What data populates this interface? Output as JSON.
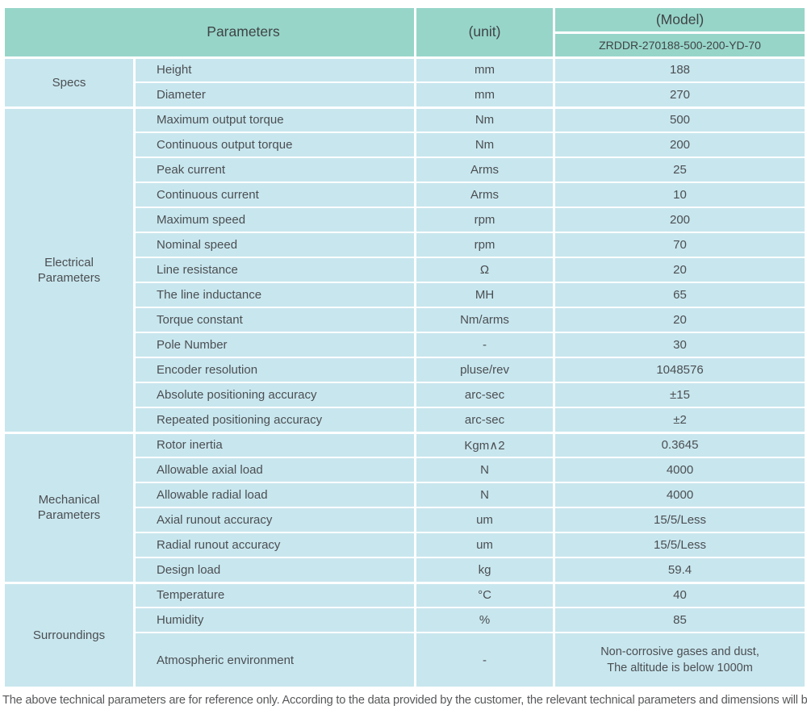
{
  "colors": {
    "header_bg": "#97d5c9",
    "row_bg": "#c8e6ee",
    "divider": "#ffffff",
    "text": "#4b4f52"
  },
  "header": {
    "parameters": "Parameters",
    "unit": "(unit)",
    "model": "(Model)",
    "model_value": "ZRDDR-270188-500-200-YD-70"
  },
  "sections": [
    {
      "group": "Specs",
      "rows": [
        [
          "Height",
          "mm",
          "188"
        ],
        [
          "Diameter",
          "mm",
          "270"
        ]
      ]
    },
    {
      "group": "Electrical\nParameters",
      "rows": [
        [
          "Maximum output torque",
          "Nm",
          "500"
        ],
        [
          "Continuous output torque",
          "Nm",
          "200"
        ],
        [
          "Peak current",
          "Arms",
          "25"
        ],
        [
          "Continuous current",
          "Arms",
          "10"
        ],
        [
          "Maximum speed",
          "rpm",
          "200"
        ],
        [
          "Nominal speed",
          "rpm",
          "70"
        ],
        [
          "Line resistance",
          "Ω",
          "20"
        ],
        [
          "The line inductance",
          "MH",
          "65"
        ],
        [
          "Torque constant",
          "Nm/arms",
          "20"
        ],
        [
          "Pole Number",
          "-",
          "30"
        ],
        [
          "Encoder resolution",
          "pluse/rev",
          "1048576"
        ],
        [
          "Absolute positioning accuracy",
          "arc-sec",
          "±15"
        ],
        [
          "Repeated positioning accuracy",
          "arc-sec",
          "±2"
        ]
      ]
    },
    {
      "group": "Mechanical\nParameters",
      "rows": [
        [
          "Rotor inertia",
          "Kgm∧2",
          "0.3645"
        ],
        [
          "Allowable axial load",
          "N",
          "4000"
        ],
        [
          "Allowable radial load",
          "N",
          "4000"
        ],
        [
          "Axial runout accuracy",
          "um",
          "15/5/Less"
        ],
        [
          "Radial runout accuracy",
          "um",
          "15/5/Less"
        ],
        [
          "Design load",
          "kg",
          "59.4"
        ]
      ]
    },
    {
      "group": "Surroundings",
      "rows": [
        [
          "Temperature",
          "°C",
          "40"
        ],
        [
          "Humidity",
          "%",
          "85"
        ],
        [
          "Atmospheric environment",
          "-",
          "Non-corrosive gases and dust,\nThe altitude is below 1000m"
        ]
      ]
    }
  ],
  "footnote": "The above technical parameters are for reference only. According to the data provided by the customer, the relevant technical parameters and dimensions will be issued."
}
